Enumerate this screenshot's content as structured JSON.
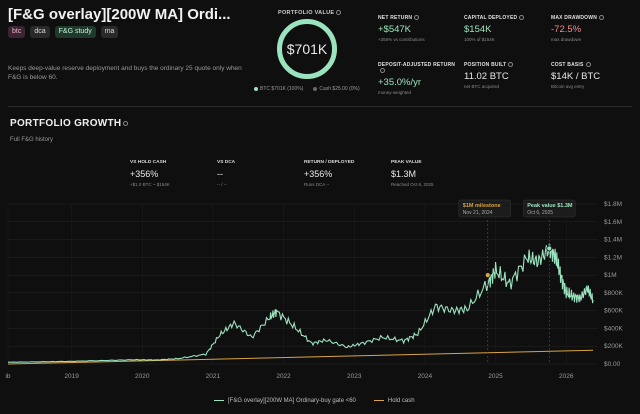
{
  "header": {
    "title": "[F&G overlay][200W MA] Ordi...",
    "tags": [
      "btc",
      "dca",
      "F&G study",
      "ma"
    ],
    "description": "Keeps deep-value reserve deployment and buys the ordinary 25 quote only when F&G is below 60."
  },
  "portfolio": {
    "label": "PORTFOLIO VALUE",
    "value": "$701K",
    "btc_label": "BTC $701K (100%)",
    "cash_label": "Cash $25.00 (0%)"
  },
  "stats": {
    "net_return": {
      "label": "NET RETURN",
      "value": "+$547K",
      "sub": "+356% vs contributions"
    },
    "capital": {
      "label": "CAPITAL DEPLOYED",
      "value": "$154K",
      "sub": "100% of $154K"
    },
    "drawdown": {
      "label": "MAX DRAWDOWN",
      "value": "-72.5%",
      "sub": "max drawdown"
    },
    "deposit": {
      "label": "DEPOSIT-ADJUSTED RETURN",
      "value": "+35.0%/yr",
      "sub": "money-weighted"
    },
    "position": {
      "label": "POSITION BUILT",
      "value": "11.02 BTC",
      "sub": "net BTC acquired"
    },
    "cost": {
      "label": "COST BASIS",
      "value": "$14K / BTC",
      "sub": "Bitcoin avg entry"
    }
  },
  "growth": {
    "title": "PORTFOLIO GROWTH",
    "subtitle": "Full F&G history",
    "vs_hold": {
      "label": "VS HOLD CASH",
      "value": "+356%",
      "sub": "+$1.0 BTC ~ $154K"
    },
    "vs_dca": {
      "label": "VS DCA",
      "value": "--",
      "sub": "-- / --"
    },
    "ret_dep": {
      "label": "RETURN / DEPLOYED",
      "value": "+356%",
      "sub": "Runs DCA --"
    },
    "peak": {
      "label": "PEAK VALUE",
      "value": "$1.3M",
      "sub": "Reached Oct 6, 2025"
    }
  },
  "chart_data": {
    "type": "line",
    "x_ticks": [
      "ib",
      "2019",
      "2020",
      "2021",
      "2022",
      "2023",
      "2024",
      "2025",
      "2026"
    ],
    "y_ticks": [
      "$0.00",
      "$200K",
      "$400K",
      "$600K",
      "$800K",
      "$1M",
      "$1.2M",
      "$1.4M",
      "$1.6M",
      "$1.8M"
    ],
    "ylim": [
      0,
      1800000
    ],
    "series": [
      {
        "name": "[F&G overlay][200W MA] Ordinary-buy gate <60",
        "color": "#9be3bf",
        "x": [
          2018.1,
          2018.6,
          2019.0,
          2019.5,
          2019.9,
          2020.2,
          2020.5,
          2020.9,
          2021.1,
          2021.3,
          2021.55,
          2021.8,
          2021.9,
          2022.15,
          2022.4,
          2022.6,
          2022.9,
          2023.1,
          2023.4,
          2023.7,
          2023.9,
          2024.15,
          2024.4,
          2024.6,
          2024.9,
          2025.0,
          2025.2,
          2025.45,
          2025.6,
          2025.76,
          2025.85,
          2025.92,
          2026.0,
          2026.1,
          2026.2,
          2026.3,
          2026.38
        ],
        "y": [
          20000,
          25000,
          30000,
          40000,
          48000,
          45000,
          60000,
          110000,
          330000,
          460000,
          300000,
          520000,
          590000,
          420000,
          230000,
          270000,
          190000,
          230000,
          300000,
          260000,
          340000,
          650000,
          600000,
          620000,
          920000,
          1050000,
          900000,
          1200000,
          1150000,
          1300000,
          1200000,
          1000000,
          800000,
          760000,
          740000,
          850000,
          720000
        ]
      },
      {
        "name": "Hold cash",
        "color": "#d9a441",
        "x": [
          2018.1,
          2026.38
        ],
        "y": [
          0,
          154000
        ]
      }
    ],
    "annotations": [
      {
        "title": "$1M milestone",
        "date": "Nov 21, 2024",
        "x": 2024.89,
        "y": 1000000
      },
      {
        "title": "Peak value $1.3M",
        "date": "Oct 6, 2025",
        "x": 2025.76,
        "y": 1300000
      }
    ]
  }
}
